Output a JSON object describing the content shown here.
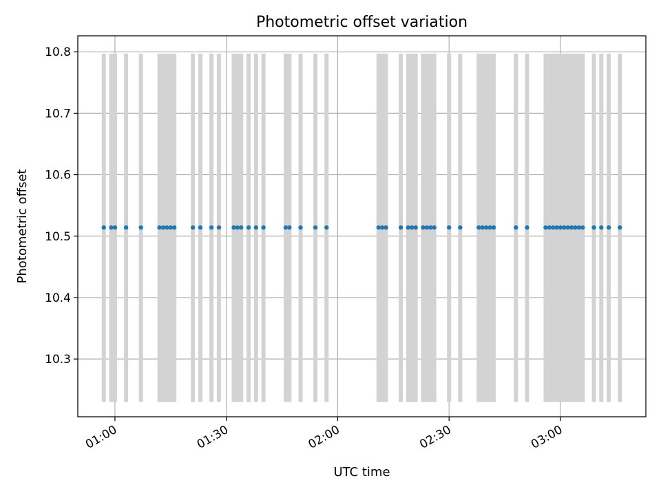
{
  "chart_data": {
    "type": "scatter",
    "title": "Photometric offset variation",
    "xlabel": "UTC time",
    "ylabel": "Photometric offset",
    "x_axis": "time",
    "xlim": [
      "00:50",
      "03:23"
    ],
    "ylim": [
      10.206,
      10.826
    ],
    "xticks": [
      "01:00",
      "01:30",
      "02:00",
      "02:30",
      "03:00"
    ],
    "yticks": [
      10.3,
      10.4,
      10.5,
      10.6,
      10.7,
      10.8
    ],
    "grid": true,
    "colors": {
      "points": "#1f77b4",
      "bars": "#d3d3d3",
      "grid": "#b0b0b0"
    },
    "bar_range": [
      10.23,
      10.797
    ],
    "series": [
      {
        "marker": "dot",
        "y": 10.514,
        "x": [
          "00:57",
          "00:59",
          "01:00",
          "01:03",
          "01:07",
          "01:12",
          "01:13",
          "01:14",
          "01:15",
          "01:16",
          "01:21",
          "01:23",
          "01:26",
          "01:28",
          "01:32",
          "01:33",
          "01:34",
          "01:36",
          "01:38",
          "01:40",
          "01:46",
          "01:47",
          "01:50",
          "01:54",
          "01:57",
          "02:11",
          "02:12",
          "02:13",
          "02:17",
          "02:19",
          "02:20",
          "02:21",
          "02:23",
          "02:24",
          "02:25",
          "02:26",
          "02:30",
          "02:33",
          "02:38",
          "02:39",
          "02:40",
          "02:41",
          "02:42",
          "02:48",
          "02:51",
          "02:56",
          "02:57",
          "02:58",
          "02:59",
          "03:00",
          "03:01",
          "03:02",
          "03:03",
          "03:04",
          "03:05",
          "03:06",
          "03:09",
          "03:11",
          "03:13",
          "03:16"
        ]
      }
    ],
    "bars_x": [
      "00:57",
      "00:59",
      "01:00",
      "01:03",
      "01:07",
      "01:12",
      "01:13",
      "01:14",
      "01:15",
      "01:16",
      "01:21",
      "01:23",
      "01:26",
      "01:28",
      "01:32",
      "01:33",
      "01:34",
      "01:36",
      "01:38",
      "01:40",
      "01:46",
      "01:47",
      "01:50",
      "01:54",
      "01:57",
      "02:11",
      "02:12",
      "02:13",
      "02:17",
      "02:19",
      "02:20",
      "02:21",
      "02:23",
      "02:24",
      "02:25",
      "02:26",
      "02:30",
      "02:33",
      "02:38",
      "02:39",
      "02:40",
      "02:41",
      "02:42",
      "02:48",
      "02:51",
      "02:56",
      "02:57",
      "02:58",
      "02:59",
      "03:00",
      "03:01",
      "03:02",
      "03:03",
      "03:04",
      "03:05",
      "03:06",
      "03:09",
      "03:11",
      "03:13",
      "03:16"
    ]
  }
}
